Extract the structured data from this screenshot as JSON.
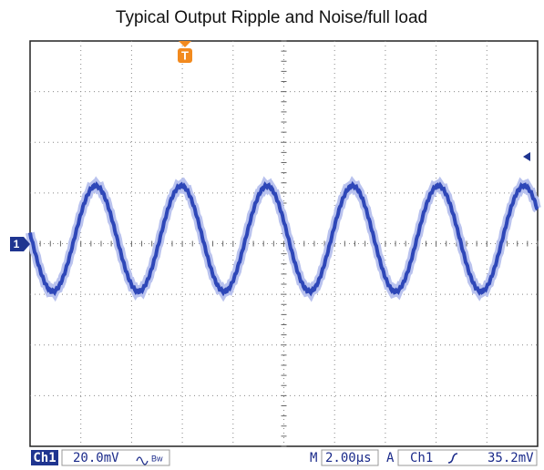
{
  "title": "Typical Output Ripple and Noise/full load",
  "markers": {
    "trigger": "T",
    "channel": "1"
  },
  "status_bar": {
    "channel": "Ch1",
    "scale": "20.0mV",
    "timebase_prefix": "M",
    "timebase": "2.00µs",
    "trigger_prefix": "A",
    "trigger_channel": "Ch1",
    "trigger_level": "35.2mV"
  }
}
